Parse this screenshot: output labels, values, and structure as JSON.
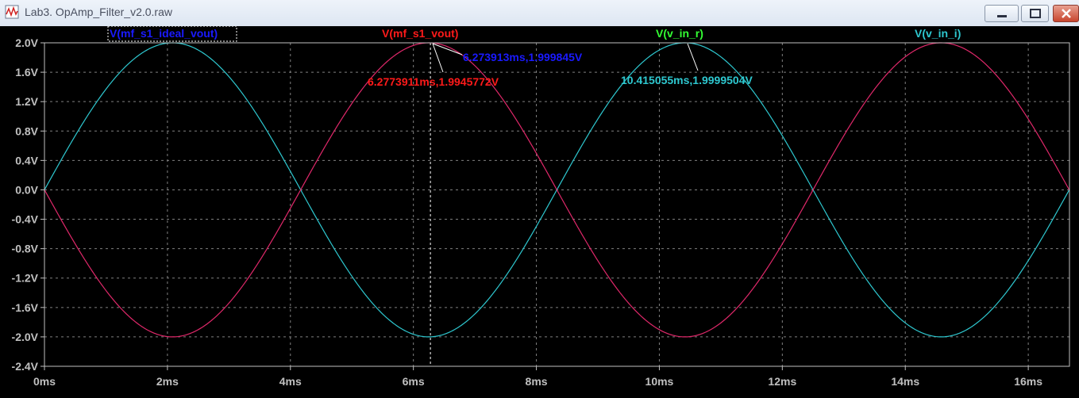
{
  "window": {
    "title": "Lab3. OpAmp_Filter_v2.0.raw"
  },
  "icons": {
    "app": "waveform-app-icon",
    "minimize": "minimize-icon",
    "maximize": "maximize-icon",
    "close": "close-icon"
  },
  "colors": {
    "background": "#000000",
    "axis": "#c0c0c0",
    "grid": "#808080",
    "cyan_trace": "#2ec8d0",
    "red_trace": "#ff1a1a",
    "blue_trace": "#1a1aff",
    "magenta_trace": "#e0286a"
  },
  "chart_data": {
    "type": "line",
    "xlabel": "",
    "ylabel": "",
    "x_unit": "ms",
    "x_range_ms": [
      0,
      16.67
    ],
    "ylim": [
      -2.4,
      2.0
    ],
    "grid": true,
    "x_ticks": [
      "0ms",
      "2ms",
      "4ms",
      "6ms",
      "8ms",
      "10ms",
      "12ms",
      "14ms",
      "16ms"
    ],
    "y_ticks": [
      "2.0V",
      "1.6V",
      "1.2V",
      "0.8V",
      "0.4V",
      "0.0V",
      "-0.4V",
      "-0.8V",
      "-1.2V",
      "-1.6V",
      "-2.0V",
      "-2.4V"
    ],
    "series": [
      {
        "name": "V(mf_s1_ideal_vout)",
        "color": "#1a1aff",
        "amplitude": 2.0,
        "period_ms": 8.333,
        "phase_deg": 0
      },
      {
        "name": "V(mf_s1_vout)",
        "color": "#ff1a1a",
        "amplitude": 2.0,
        "period_ms": 8.333,
        "phase_deg": 180
      },
      {
        "name": "V(v_in_r)",
        "color": "#33ff33",
        "amplitude": 2.0,
        "period_ms": 8.333,
        "phase_deg": 0
      },
      {
        "name": "V(v_in_i)",
        "color": "#2ec8d0",
        "amplitude": 2.0,
        "period_ms": 8.333,
        "phase_deg": 0
      }
    ],
    "cursor_x_ms": 6.277,
    "annotations": [
      {
        "text": "6.273913ms,1.999845V",
        "color": "#1a1aff"
      },
      {
        "text": "6.2773911ms,1.9945772V",
        "color": "#ff1a1a"
      },
      {
        "text": "10.415055ms,1.9999504V",
        "color": "#2ec8d0"
      }
    ]
  }
}
